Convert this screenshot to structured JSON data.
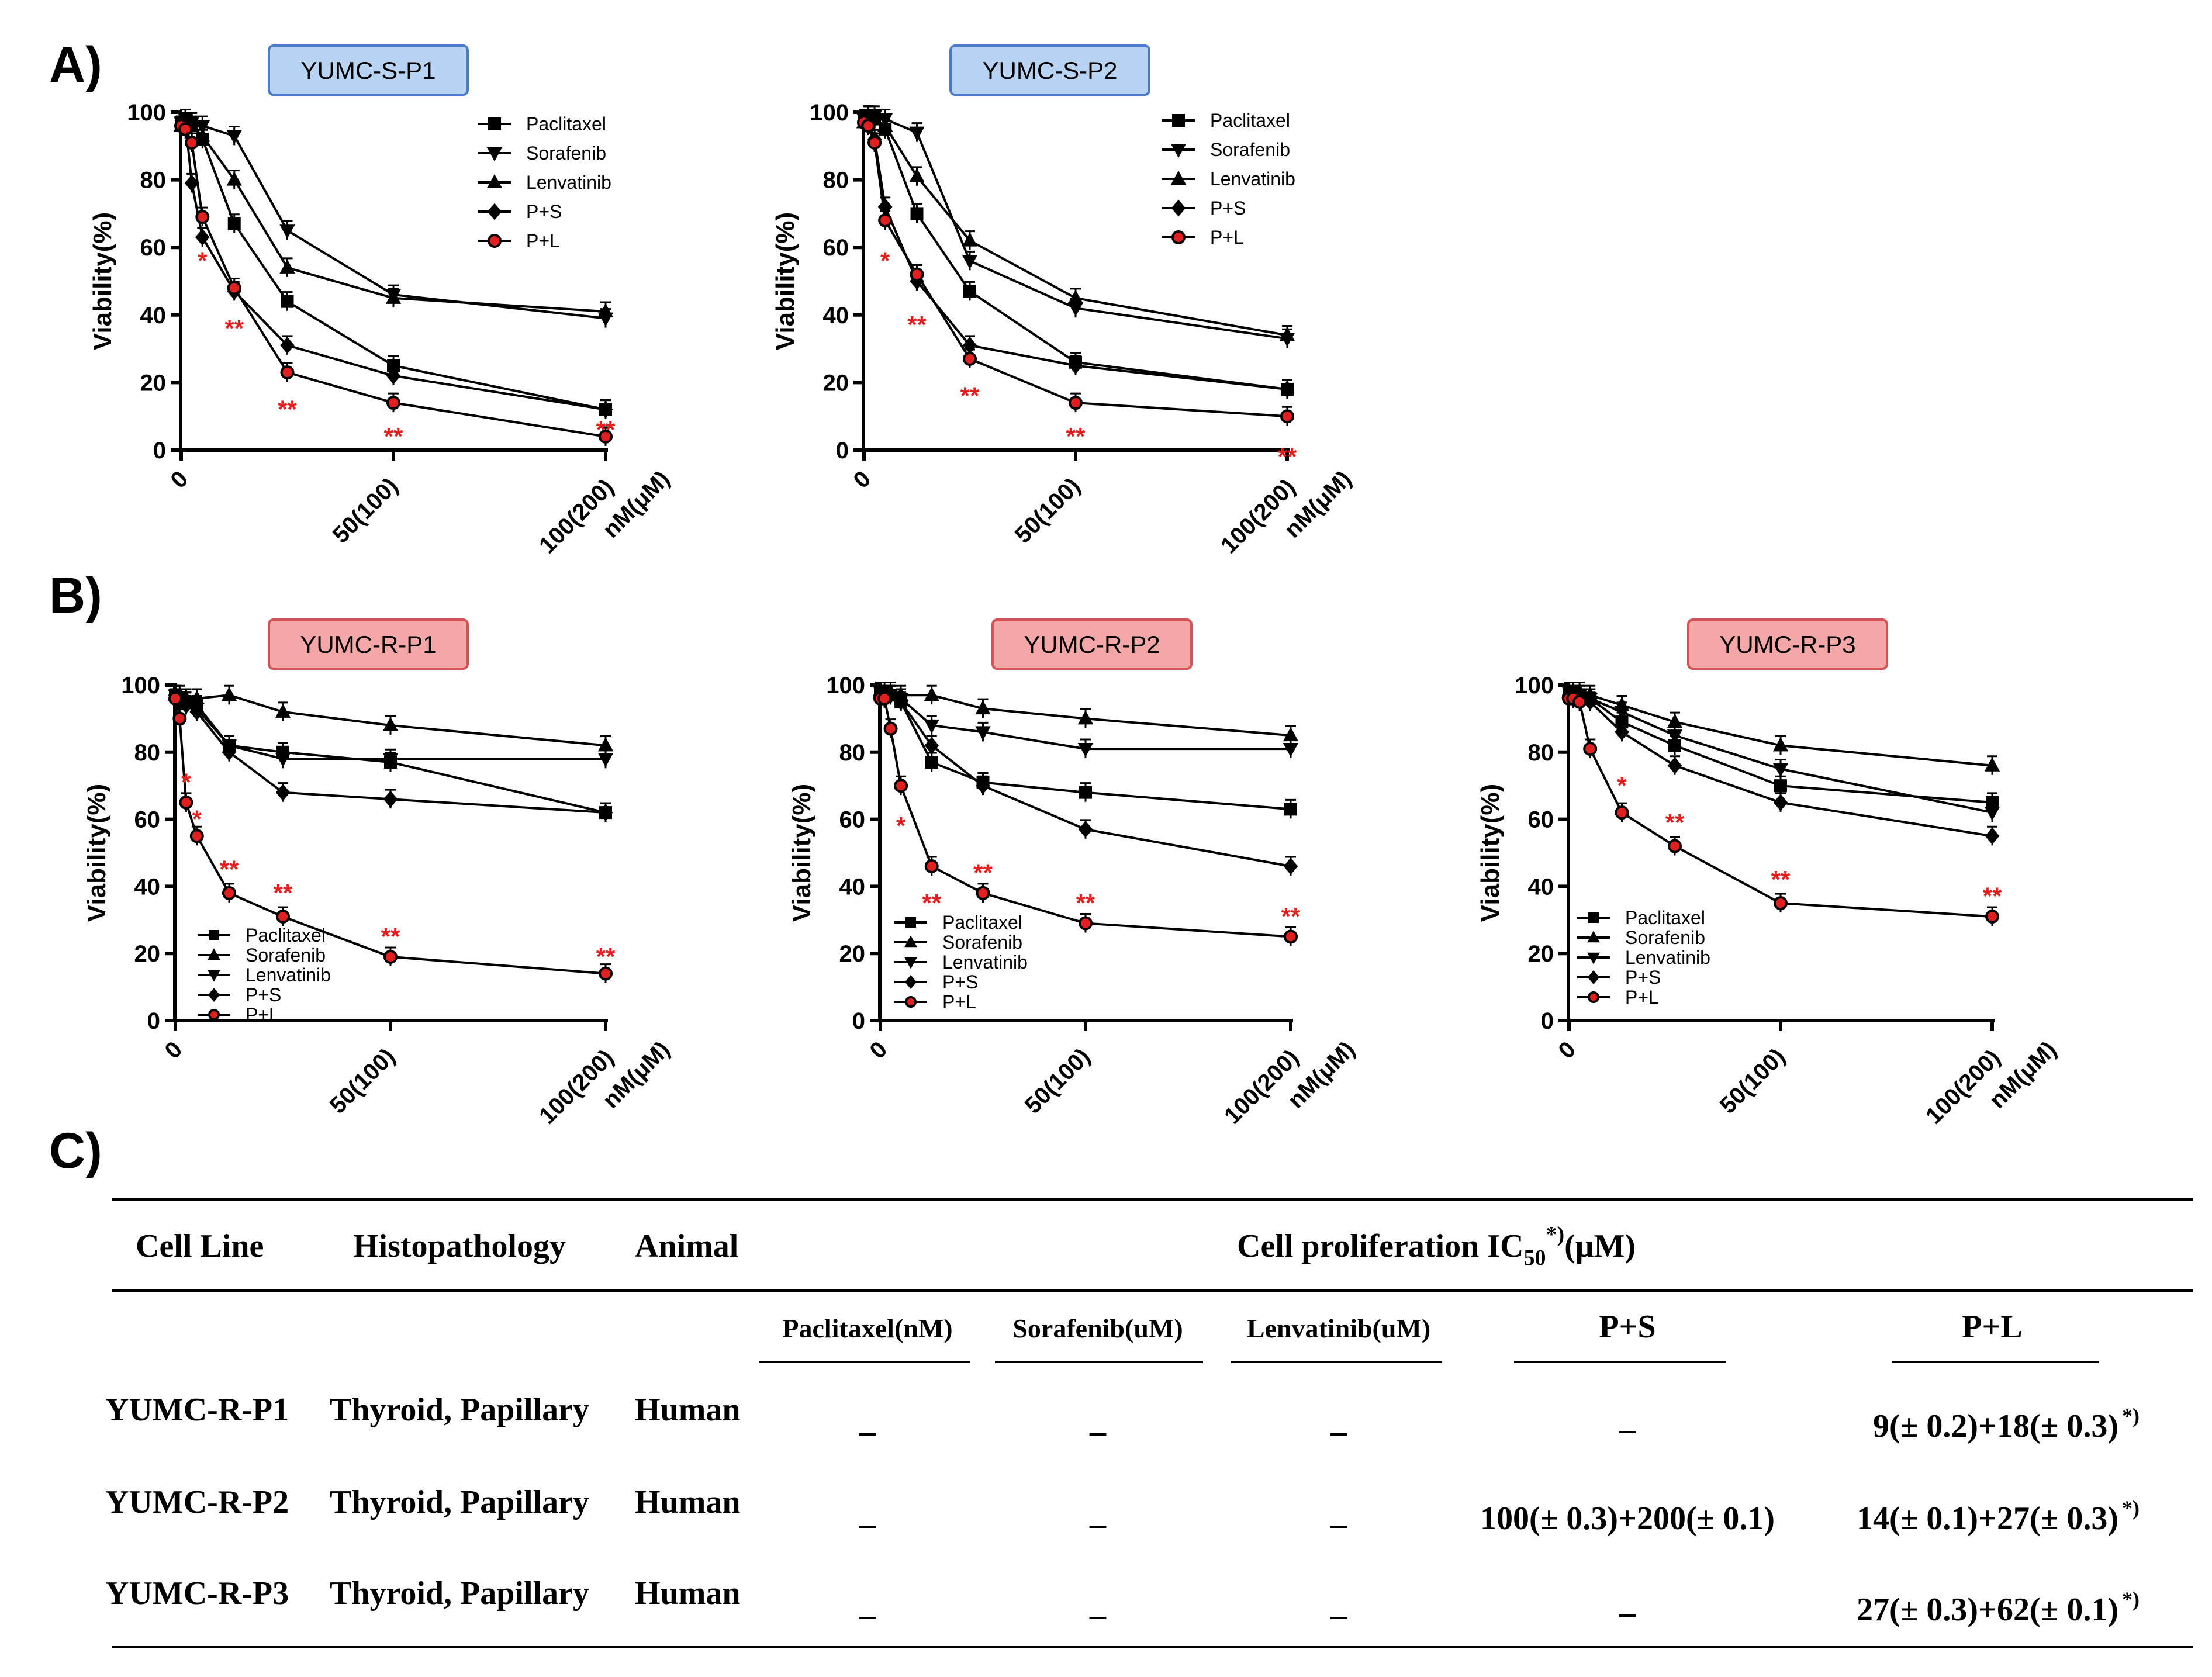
{
  "panels": {
    "A": "A)",
    "B": "B)",
    "C": "C)"
  },
  "colors": {
    "sensitive_box_fill": "#b9d3f2",
    "sensitive_box_stroke": "#4a7cc7",
    "resistant_box_fill": "#f4a7a7",
    "resistant_box_stroke": "#d15454",
    "significance": "#e61e1e",
    "pl_marker_fill": "#e02020"
  },
  "chart_data": [
    {
      "type": "line",
      "title": "YUMC-S-P1",
      "ylabel": "Viability(%)",
      "x": [
        0,
        1,
        2.5,
        5,
        12.5,
        25,
        50,
        100
      ],
      "x_tick_labels": [
        "0",
        "50(100)",
        "100(200)",
        "nM(μM)"
      ],
      "ylim": [
        0,
        100
      ],
      "yticks": [
        "0",
        "20",
        "40",
        "60",
        "80",
        "100"
      ],
      "legend": [
        "Paclitaxel",
        "Sorafenib",
        "Lenvatinib",
        "P+S",
        "P+L"
      ],
      "series": [
        {
          "name": "Paclitaxel",
          "marker": "square",
          "values": [
            97,
            98,
            97,
            92,
            67,
            44,
            25,
            12
          ]
        },
        {
          "name": "Sorafenib",
          "marker": "triangle-down",
          "values": [
            97,
            98,
            97,
            96,
            93,
            65,
            46,
            39
          ]
        },
        {
          "name": "Lenvatinib",
          "marker": "triangle-up",
          "values": [
            96,
            98,
            96,
            93,
            80,
            54,
            45,
            41
          ]
        },
        {
          "name": "P+S",
          "marker": "diamond",
          "values": [
            96,
            97,
            79,
            63,
            47,
            31,
            22,
            12
          ]
        },
        {
          "name": "P+L",
          "marker": "circle",
          "values": [
            96,
            95,
            91,
            69,
            48,
            23,
            14,
            4
          ]
        }
      ],
      "significance": [
        {
          "x": 5,
          "y": 56,
          "label": "*"
        },
        {
          "x": 12.5,
          "y": 36,
          "label": "**"
        },
        {
          "x": 25,
          "y": 12,
          "label": "**"
        },
        {
          "x": 50,
          "y": 4,
          "label": "**"
        },
        {
          "x": 100,
          "y": 6,
          "label": "**"
        }
      ]
    },
    {
      "type": "line",
      "title": "YUMC-S-P2",
      "ylabel": "Viability(%)",
      "x": [
        0,
        1,
        2.5,
        5,
        12.5,
        25,
        50,
        100
      ],
      "x_tick_labels": [
        "0",
        "50(100)",
        "100(200)",
        "nM(μM)"
      ],
      "ylim": [
        0,
        100
      ],
      "yticks": [
        "0",
        "20",
        "40",
        "60",
        "80",
        "100"
      ],
      "legend": [
        "Paclitaxel",
        "Sorafenib",
        "Lenvatinib",
        "P+S",
        "P+L"
      ],
      "series": [
        {
          "name": "Paclitaxel",
          "marker": "square",
          "values": [
            98,
            99,
            98,
            95,
            70,
            47,
            26,
            18
          ]
        },
        {
          "name": "Sorafenib",
          "marker": "triangle-down",
          "values": [
            98,
            99,
            99,
            98,
            94,
            56,
            42,
            33
          ]
        },
        {
          "name": "Lenvatinib",
          "marker": "triangle-up",
          "values": [
            97,
            99,
            98,
            96,
            81,
            62,
            45,
            34
          ]
        },
        {
          "name": "P+S",
          "marker": "diamond",
          "values": [
            97,
            97,
            92,
            72,
            50,
            31,
            25,
            18
          ]
        },
        {
          "name": "P+L",
          "marker": "circle",
          "values": [
            97,
            96,
            91,
            68,
            52,
            27,
            14,
            10
          ]
        }
      ],
      "significance": [
        {
          "x": 5,
          "y": 56,
          "label": "*"
        },
        {
          "x": 12.5,
          "y": 37,
          "label": "**"
        },
        {
          "x": 25,
          "y": 16,
          "label": "**"
        },
        {
          "x": 50,
          "y": 4,
          "label": "**"
        },
        {
          "x": 100,
          "y": -2,
          "label": "**"
        }
      ]
    },
    {
      "type": "line",
      "title": "YUMC-R-P1",
      "ylabel": "Viability(%)",
      "x": [
        0,
        1,
        2.5,
        5,
        12.5,
        25,
        50,
        100
      ],
      "x_tick_labels": [
        "0",
        "50(100)",
        "100(200)",
        "nM(μM)"
      ],
      "ylim": [
        0,
        100
      ],
      "yticks": [
        "0",
        "20",
        "40",
        "60",
        "80",
        "100"
      ],
      "legend": [
        "Paclitaxel",
        "Sorafenib",
        "Lenvatinib",
        "P+S",
        "P+L"
      ],
      "series": [
        {
          "name": "Paclitaxel",
          "marker": "square",
          "values": [
            97,
            96,
            95,
            94,
            82,
            80,
            77,
            62
          ]
        },
        {
          "name": "Sorafenib",
          "marker": "triangle-up",
          "values": [
            97,
            97,
            96,
            96,
            97,
            92,
            88,
            82
          ]
        },
        {
          "name": "Lenvatinib",
          "marker": "triangle-down",
          "values": [
            97,
            96,
            95,
            93,
            82,
            78,
            78,
            78
          ]
        },
        {
          "name": "P+S",
          "marker": "diamond",
          "values": [
            97,
            95,
            94,
            92,
            80,
            68,
            66,
            62
          ]
        },
        {
          "name": "P+L",
          "marker": "circle",
          "values": [
            96,
            90,
            65,
            55,
            38,
            31,
            19,
            14
          ]
        }
      ],
      "significance": [
        {
          "x": 2.5,
          "y": 71,
          "label": "*"
        },
        {
          "x": 5,
          "y": 60,
          "label": "*"
        },
        {
          "x": 12.5,
          "y": 45,
          "label": "**"
        },
        {
          "x": 25,
          "y": 38,
          "label": "**"
        },
        {
          "x": 50,
          "y": 25,
          "label": "**"
        },
        {
          "x": 100,
          "y": 19,
          "label": "**"
        }
      ]
    },
    {
      "type": "line",
      "title": "YUMC-R-P2",
      "ylabel": "Viability(%)",
      "x": [
        0,
        1,
        2.5,
        5,
        12.5,
        25,
        50,
        100
      ],
      "x_tick_labels": [
        "0",
        "50(100)",
        "100(200)",
        "nM(μM)"
      ],
      "ylim": [
        0,
        100
      ],
      "yticks": [
        "0",
        "20",
        "40",
        "60",
        "80",
        "100"
      ],
      "legend": [
        "Paclitaxel",
        "Sorafenib",
        "Lenvatinib",
        "P+S",
        "P+L"
      ],
      "series": [
        {
          "name": "Paclitaxel",
          "marker": "square",
          "values": [
            98,
            98,
            97,
            95,
            77,
            71,
            68,
            63
          ]
        },
        {
          "name": "Sorafenib",
          "marker": "triangle-up",
          "values": [
            98,
            98,
            98,
            97,
            97,
            93,
            90,
            85
          ]
        },
        {
          "name": "Lenvatinib",
          "marker": "triangle-down",
          "values": [
            98,
            98,
            97,
            96,
            88,
            86,
            81,
            81
          ]
        },
        {
          "name": "P+S",
          "marker": "diamond",
          "values": [
            97,
            97,
            97,
            95,
            82,
            70,
            57,
            46
          ]
        },
        {
          "name": "P+L",
          "marker": "circle",
          "values": [
            96,
            96,
            87,
            70,
            46,
            38,
            29,
            25
          ]
        }
      ],
      "significance": [
        {
          "x": 5,
          "y": 58,
          "label": "*"
        },
        {
          "x": 12.5,
          "y": 35,
          "label": "**"
        },
        {
          "x": 25,
          "y": 44,
          "label": "**"
        },
        {
          "x": 50,
          "y": 35,
          "label": "**"
        },
        {
          "x": 100,
          "y": 31,
          "label": "**"
        }
      ]
    },
    {
      "type": "line",
      "title": "YUMC-R-P3",
      "ylabel": "Viability(%)",
      "x": [
        0,
        1,
        2.5,
        5,
        12.5,
        25,
        50,
        100
      ],
      "x_tick_labels": [
        "0",
        "50(100)",
        "100(200)",
        "nM(μM)"
      ],
      "ylim": [
        0,
        100
      ],
      "yticks": [
        "0",
        "20",
        "40",
        "60",
        "80",
        "100"
      ],
      "legend": [
        "Paclitaxel",
        "Sorafenib",
        "Lenvatinib",
        "P+S",
        "P+L"
      ],
      "series": [
        {
          "name": "Paclitaxel",
          "marker": "square",
          "values": [
            98,
            98,
            97,
            96,
            89,
            82,
            70,
            65
          ]
        },
        {
          "name": "Sorafenib",
          "marker": "triangle-up",
          "values": [
            98,
            98,
            98,
            97,
            94,
            89,
            82,
            76
          ]
        },
        {
          "name": "Lenvatinib",
          "marker": "triangle-down",
          "values": [
            98,
            98,
            97,
            96,
            92,
            85,
            75,
            62
          ]
        },
        {
          "name": "P+S",
          "marker": "diamond",
          "values": [
            97,
            97,
            96,
            95,
            86,
            76,
            65,
            55
          ]
        },
        {
          "name": "P+L",
          "marker": "circle",
          "values": [
            96,
            96,
            95,
            81,
            62,
            52,
            35,
            31
          ]
        }
      ],
      "significance": [
        {
          "x": 12.5,
          "y": 70,
          "label": "*"
        },
        {
          "x": 25,
          "y": 59,
          "label": "**"
        },
        {
          "x": 50,
          "y": 42,
          "label": "**"
        },
        {
          "x": 100,
          "y": 37,
          "label": "**"
        }
      ]
    }
  ],
  "table": {
    "headers": {
      "cell_line": "Cell Line",
      "histopathology": "Histopathology",
      "animal": "Animal",
      "group": "Cell proliferation  IC",
      "group_sub": "50",
      "group_sup": "*)",
      "group_unit": "(μM)"
    },
    "subheaders": [
      "Paclitaxel(nM)",
      "Sorafenib(uM)",
      "Lenvatinib(uM)",
      "P+S",
      "P+L"
    ],
    "rows": [
      {
        "cell_line": "YUMC-R-P1",
        "histopathology": "Thyroid,  Papillary",
        "animal": "Human",
        "paclitaxel": "_",
        "sorafenib": "_",
        "lenvatinib": "_",
        "ps": "_",
        "pl": "9(± 0.2)+18(± 0.3)",
        "pl_sup": "*)"
      },
      {
        "cell_line": "YUMC-R-P2",
        "histopathology": "Thyroid,  Papillary",
        "animal": "Human",
        "paclitaxel": "_",
        "sorafenib": "_",
        "lenvatinib": "_",
        "ps": "100(± 0.3)+200(± 0.1)",
        "pl": "14(± 0.1)+27(± 0.3)",
        "pl_sup": "*)"
      },
      {
        "cell_line": "YUMC-R-P3",
        "histopathology": "Thyroid,  Papillary",
        "animal": "Human",
        "paclitaxel": "_",
        "sorafenib": "_",
        "lenvatinib": "_",
        "ps": "_",
        "pl": "27(± 0.3)+62(± 0.1)",
        "pl_sup": "*)"
      }
    ]
  }
}
